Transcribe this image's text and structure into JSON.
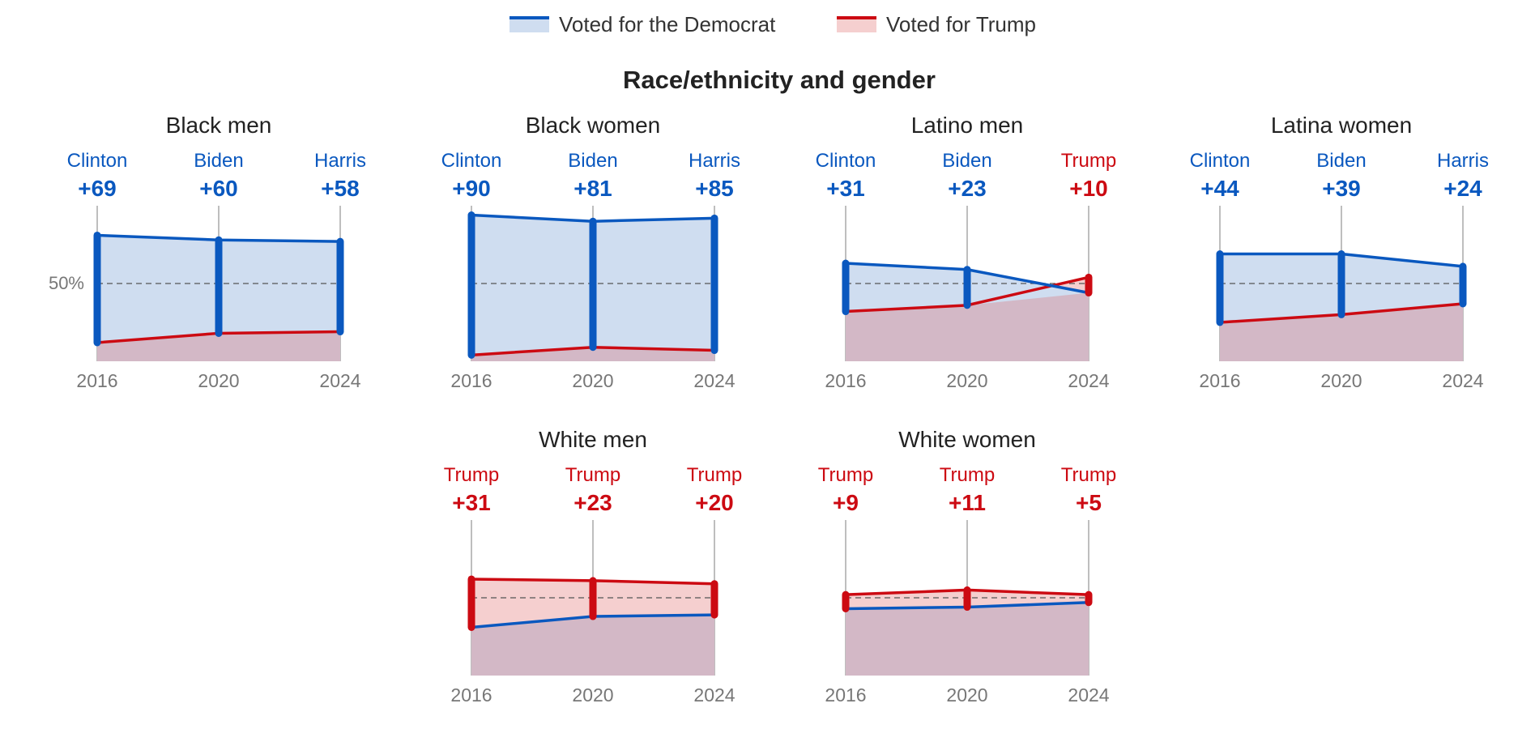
{
  "legend": {
    "dem_label": "Voted for the Democrat",
    "trump_label": "Voted for Trump"
  },
  "colors": {
    "dem": "#0A58BF",
    "dem_fill": "#CFDDF0",
    "rep": "#CC0A12",
    "rep_fill": "#F5CFCF",
    "overlap_fill": "#D3B8C6",
    "axis": "#A9A9A9",
    "text": "#222222",
    "muted": "#777777"
  },
  "section_title": "Race/ethnicity and gender",
  "ref_line_label": "50%",
  "chart_data": {
    "type": "area",
    "x": [
      "2016",
      "2020",
      "2024"
    ],
    "ylim": [
      0,
      100
    ],
    "ref_line": 50,
    "panels": [
      {
        "title": "Black men",
        "dem": [
          81,
          78,
          77
        ],
        "rep": [
          12,
          18,
          19
        ],
        "labels": [
          {
            "winner": "Clinton",
            "margin": "+69",
            "party": "dem"
          },
          {
            "winner": "Biden",
            "margin": "+60",
            "party": "dem"
          },
          {
            "winner": "Harris",
            "margin": "+58",
            "party": "dem"
          }
        ]
      },
      {
        "title": "Black women",
        "dem": [
          94,
          90,
          92
        ],
        "rep": [
          4,
          9,
          7
        ],
        "labels": [
          {
            "winner": "Clinton",
            "margin": "+90",
            "party": "dem"
          },
          {
            "winner": "Biden",
            "margin": "+81",
            "party": "dem"
          },
          {
            "winner": "Harris",
            "margin": "+85",
            "party": "dem"
          }
        ]
      },
      {
        "title": "Latino men",
        "dem": [
          63,
          59,
          44
        ],
        "rep": [
          32,
          36,
          54
        ],
        "labels": [
          {
            "winner": "Clinton",
            "margin": "+31",
            "party": "dem"
          },
          {
            "winner": "Biden",
            "margin": "+23",
            "party": "dem"
          },
          {
            "winner": "Trump",
            "margin": "+10",
            "party": "rep"
          }
        ]
      },
      {
        "title": "Latina women",
        "dem": [
          69,
          69,
          61
        ],
        "rep": [
          25,
          30,
          37
        ],
        "labels": [
          {
            "winner": "Clinton",
            "margin": "+44",
            "party": "dem"
          },
          {
            "winner": "Biden",
            "margin": "+39",
            "party": "dem"
          },
          {
            "winner": "Harris",
            "margin": "+24",
            "party": "dem"
          }
        ]
      },
      {
        "title": "White men",
        "dem": [
          31,
          38,
          39
        ],
        "rep": [
          62,
          61,
          59
        ],
        "labels": [
          {
            "winner": "Trump",
            "margin": "+31",
            "party": "rep"
          },
          {
            "winner": "Trump",
            "margin": "+23",
            "party": "rep"
          },
          {
            "winner": "Trump",
            "margin": "+20",
            "party": "rep"
          }
        ]
      },
      {
        "title": "White women",
        "dem": [
          43,
          44,
          47
        ],
        "rep": [
          52,
          55,
          52
        ],
        "labels": [
          {
            "winner": "Trump",
            "margin": "+9",
            "party": "rep"
          },
          {
            "winner": "Trump",
            "margin": "+11",
            "party": "rep"
          },
          {
            "winner": "Trump",
            "margin": "+5",
            "party": "rep"
          }
        ]
      }
    ]
  }
}
